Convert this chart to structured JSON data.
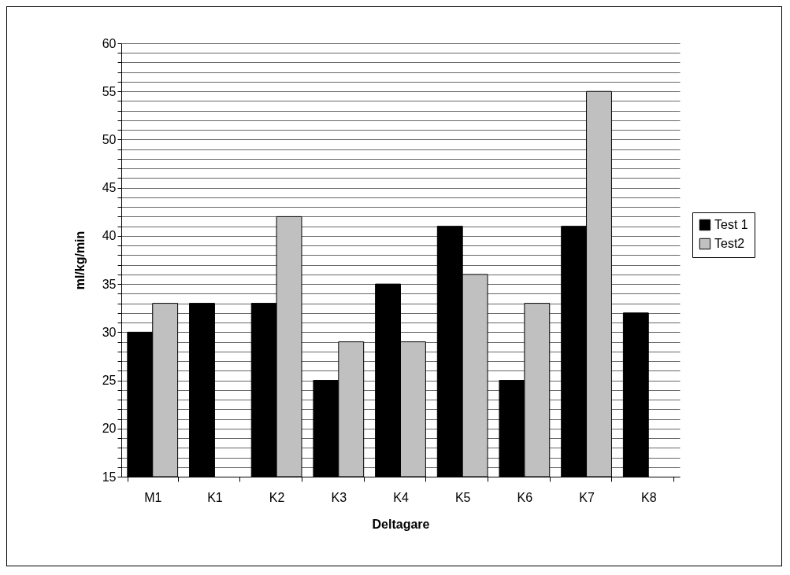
{
  "chart_data": {
    "type": "bar",
    "xlabel": "Deltagare",
    "ylabel": "ml/kg/min",
    "categories": [
      "M1",
      "K1",
      "K2",
      "K3",
      "K4",
      "K5",
      "K6",
      "K7",
      "K8"
    ],
    "series": [
      {
        "name": "Test 1",
        "color": "#000000",
        "values": [
          30,
          33,
          33,
          25,
          35,
          41,
          25,
          41,
          32
        ]
      },
      {
        "name": "Test2",
        "color": "#c0c0c0",
        "values": [
          33,
          null,
          42,
          29,
          29,
          36,
          33,
          55,
          null
        ]
      }
    ],
    "ylim": [
      15,
      60
    ],
    "yticks": [
      15,
      {
        "value": 16,
        "label": null
      },
      {
        "value": 17,
        "label": null
      },
      {
        "value": 18,
        "label": null
      },
      {
        "value": 19,
        "label": null
      },
      20,
      {
        "value": 21,
        "label": null
      },
      {
        "value": 22,
        "label": null
      },
      {
        "value": 23,
        "label": null
      },
      {
        "value": 24,
        "label": null
      },
      25,
      {
        "value": 26,
        "label": null
      },
      {
        "value": 27,
        "label": null
      },
      {
        "value": 28,
        "label": null
      },
      {
        "value": 29,
        "label": null
      },
      30,
      {
        "value": 31,
        "label": null
      },
      {
        "value": 32,
        "label": null
      },
      {
        "value": 33,
        "label": null
      },
      {
        "value": 34,
        "label": null
      },
      35,
      {
        "value": 36,
        "label": null
      },
      {
        "value": 37,
        "label": null
      },
      {
        "value": 38,
        "label": null
      },
      {
        "value": 39,
        "label": null
      },
      40,
      {
        "value": 41,
        "label": null
      },
      {
        "value": 42,
        "label": null
      },
      {
        "value": 43,
        "label": null
      },
      {
        "value": 44,
        "label": null
      },
      45,
      {
        "value": 46,
        "label": null
      },
      {
        "value": 47,
        "label": null
      },
      {
        "value": 48,
        "label": null
      },
      {
        "value": 49,
        "label": null
      },
      50,
      {
        "value": 51,
        "label": null
      },
      {
        "value": 52,
        "label": null
      },
      {
        "value": 53,
        "label": null
      },
      {
        "value": 54,
        "label": null
      },
      55,
      {
        "value": 56,
        "label": null
      },
      {
        "value": 57,
        "label": null
      },
      {
        "value": 58,
        "label": null
      },
      {
        "value": 59,
        "label": null
      },
      60
    ],
    "grid": "y",
    "legend": "right"
  }
}
